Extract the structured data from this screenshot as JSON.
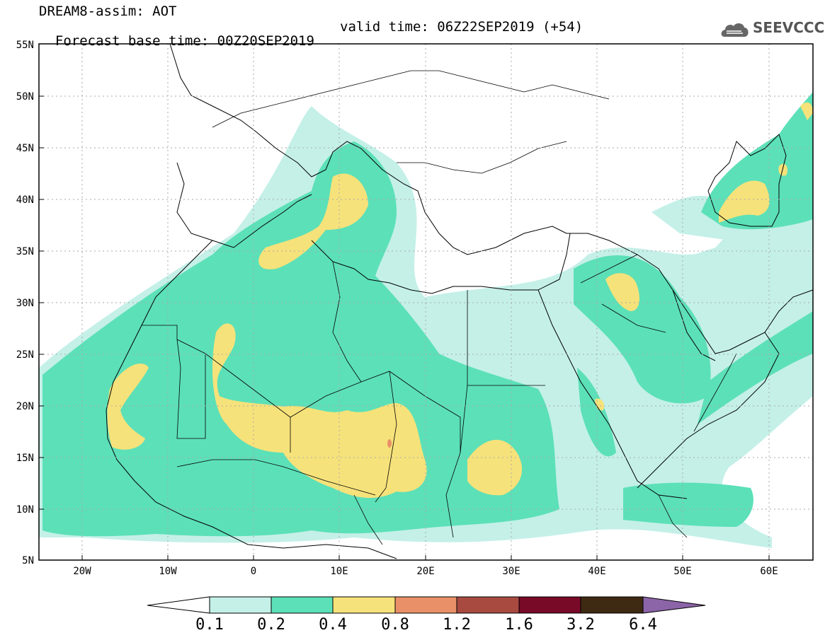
{
  "header": {
    "title_line1": "DREAM8-assim: AOT",
    "title_line2_base": "Forecast base time: 00Z20SEP2019",
    "title_line2_valid": "valid time: 06Z22SEP2019 (+54)",
    "logo_text": "SEEVCCC"
  },
  "axes": {
    "lat_labels": [
      "55N",
      "50N",
      "45N",
      "40N",
      "35N",
      "30N",
      "25N",
      "20N",
      "15N",
      "10N",
      "5N"
    ],
    "lon_labels": [
      "20W",
      "10W",
      "0",
      "10E",
      "20E",
      "30E",
      "40E",
      "50E",
      "60E"
    ],
    "lat_range": [
      5,
      55
    ],
    "lon_range": [
      -25,
      65
    ]
  },
  "colorbar": {
    "labels": [
      "0.1",
      "0.2",
      "0.4",
      "0.8",
      "1.2",
      "1.6",
      "3.2",
      "6.4"
    ],
    "colors": [
      "#c4f0e8",
      "#5ce0b8",
      "#f6e27a",
      "#ea9068",
      "#a84a40",
      "#780a28",
      "#3e2a12",
      "#8c64a8"
    ]
  },
  "colors": {
    "level_0_1": "#c4f0e8",
    "level_0_2": "#5ce0b8",
    "level_0_4": "#f6e27a",
    "level_0_8": "#ea9068"
  }
}
